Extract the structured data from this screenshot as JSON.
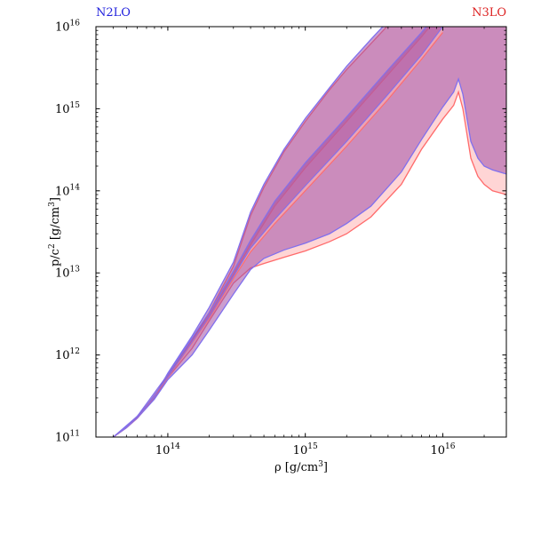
{
  "chart_data": {
    "type": "area",
    "title": "",
    "xlabel": "ρ [g/cm³]",
    "ylabel": "p/c² [g/cm³]",
    "xscale": "log",
    "yscale": "log",
    "xlim": [
      30000000000000.0,
      2.9e+16
    ],
    "ylim": [
      100000000000.0,
      1e+16
    ],
    "x_ticks": [
      {
        "value": 100000000000000.0,
        "base": "10",
        "exp": "14"
      },
      {
        "value": 1000000000000000.0,
        "base": "10",
        "exp": "15"
      },
      {
        "value": 1e+16,
        "base": "10",
        "exp": "16"
      }
    ],
    "y_ticks": [
      {
        "value": 100000000000.0,
        "base": "10",
        "exp": "11"
      },
      {
        "value": 1000000000000.0,
        "base": "10",
        "exp": "12"
      },
      {
        "value": 10000000000000.0,
        "base": "10",
        "exp": "13"
      },
      {
        "value": 100000000000000.0,
        "base": "10",
        "exp": "14"
      },
      {
        "value": 1000000000000000.0,
        "base": "10",
        "exp": "15"
      },
      {
        "value": 1e+16,
        "base": "10",
        "exp": "16"
      }
    ],
    "corner_labels": [
      {
        "text": "N2LO",
        "color": "#2222dd",
        "position": "top-left"
      },
      {
        "text": "N3LO",
        "color": "#dd2222",
        "position": "top-right"
      }
    ],
    "grid": false,
    "series": [
      {
        "name": "N3LO",
        "color": "#ff6b6b",
        "fill": "#ffb3b3",
        "outer_band": {
          "x": [
            40000000000000.0,
            50000000000000.0,
            60000000000000.0,
            80000000000000.0,
            100000000000000.0,
            150000000000000.0,
            200000000000000.0,
            300000000000000.0,
            400000000000000.0,
            500000000000000.0,
            700000000000000.0,
            1000000000000000.0,
            1500000000000000.0,
            2000000000000000.0,
            3000000000000000.0,
            5000000000000000.0,
            7000000000000000.0,
            1e+16,
            1.2e+16,
            1.3e+16,
            1.4e+16,
            1.6e+16,
            1.8e+16,
            2e+16,
            2.3e+16,
            2.9e+16
          ],
          "upper": [
            100000000000.0,
            130000000000.0,
            170000000000.0,
            300000000000.0,
            550000000000.0,
            1500000000000.0,
            3300000000000.0,
            12000000000000.0,
            50000000000000.0,
            110000000000000.0,
            300000000000000.0,
            700000000000000.0,
            1700000000000000.0,
            3000000000000000.0,
            6200000000000000.0,
            1.55e+16,
            2.8e+16,
            4.8e+16,
            6e+16,
            6.5e+16,
            7e+16,
            8e+16,
            9e+16,
            1e+17,
            1.15e+17,
            1.4e+17
          ],
          "lower": [
            100000000000.0,
            130000000000.0,
            170000000000.0,
            300000000000.0,
            530000000000.0,
            1200000000000.0,
            2600000000000.0,
            7500000000000.0,
            11500000000000.0,
            13000000000000.0,
            15500000000000.0,
            18500000000000.0,
            24000000000000.0,
            30000000000000.0,
            48000000000000.0,
            120000000000000.0,
            320000000000000.0,
            750000000000000.0,
            1100000000000000.0,
            1600000000000000.0,
            1000000000000000.0,
            250000000000000.0,
            150000000000000.0,
            120000000000000.0,
            100000000000000.0,
            90000000000000.0
          ]
        },
        "inner_band": {
          "x": [
            40000000000000.0,
            60000000000000.0,
            100000000000000.0,
            200000000000000.0,
            300000000000000.0,
            400000000000000.0,
            600000000000000.0,
            1000000000000000.0,
            2000000000000000.0,
            4000000000000000.0,
            7000000000000000.0,
            1e+16
          ],
          "upper": [
            100000000000.0,
            170000000000.0,
            540000000000.0,
            3000000000000.0,
            9500000000000.0,
            22000000000000.0,
            65000000000000.0,
            190000000000000.0,
            700000000000000.0,
            2600000000000000.0,
            7500000000000000.0,
            1.55e+16
          ],
          "lower": [
            100000000000.0,
            170000000000.0,
            530000000000.0,
            2800000000000.0,
            8500000000000.0,
            18000000000000.0,
            40000000000000.0,
            100000000000000.0,
            350000000000000.0,
            1300000000000000.0,
            4000000000000000.0,
            8500000000000000.0
          ]
        }
      },
      {
        "name": "N2LO",
        "color": "#8070ee",
        "fill": "#a050a8",
        "outer_band": {
          "x": [
            40000000000000.0,
            50000000000000.0,
            60000000000000.0,
            80000000000000.0,
            100000000000000.0,
            150000000000000.0,
            200000000000000.0,
            300000000000000.0,
            400000000000000.0,
            500000000000000.0,
            700000000000000.0,
            1000000000000000.0,
            1500000000000000.0,
            2000000000000000.0,
            3000000000000000.0,
            5000000000000000.0,
            7000000000000000.0,
            1e+16,
            1.2e+16,
            1.3e+16,
            1.4e+16,
            1.6e+16,
            1.8e+16,
            2e+16,
            2.3e+16,
            2.9e+16
          ],
          "upper": [
            100000000000.0,
            130000000000.0,
            180000000000.0,
            310000000000.0,
            600000000000.0,
            1700000000000.0,
            3800000000000.0,
            13500000000000.0,
            55000000000000.0,
            120000000000000.0,
            320000000000000.0,
            760000000000000.0,
            1800000000000000.0,
            3300000000000000.0,
            7000000000000000.0,
            1.75e+16,
            3.2e+16,
            5.6e+16,
            7e+16,
            7.5e+16,
            8e+16,
            9e+16,
            1e+17,
            1.1e+17,
            1.25e+17,
            1.5e+17
          ],
          "lower": [
            100000000000.0,
            130000000000.0,
            170000000000.0,
            290000000000.0,
            500000000000.0,
            1000000000000.0,
            2000000000000.0,
            5500000000000.0,
            11000000000000.0,
            15000000000000.0,
            19000000000000.0,
            23000000000000.0,
            30000000000000.0,
            40000000000000.0,
            65000000000000.0,
            170000000000000.0,
            420000000000000.0,
            1050000000000000.0,
            1600000000000000.0,
            2300000000000000.0,
            1500000000000000.0,
            400000000000000.0,
            250000000000000.0,
            200000000000000.0,
            180000000000000.0,
            160000000000000.0
          ]
        },
        "inner_band": {
          "x": [
            40000000000000.0,
            60000000000000.0,
            100000000000000.0,
            200000000000000.0,
            300000000000000.0,
            400000000000000.0,
            600000000000000.0,
            1000000000000000.0,
            2000000000000000.0,
            4000000000000000.0,
            7000000000000000.0,
            1e+16
          ],
          "upper": [
            100000000000.0,
            180000000000.0,
            580000000000.0,
            3300000000000.0,
            10500000000000.0,
            25000000000000.0,
            75000000000000.0,
            220000000000000.0,
            800000000000000.0,
            3000000000000000.0,
            8500000000000000.0,
            1.8e+16
          ],
          "lower": [
            100000000000.0,
            170000000000.0,
            540000000000.0,
            2900000000000.0,
            9000000000000.0,
            20000000000000.0,
            45000000000000.0,
            115000000000000.0,
            400000000000000.0,
            1500000000000000.0,
            4500000000000000.0,
            1e+16
          ]
        }
      }
    ]
  }
}
